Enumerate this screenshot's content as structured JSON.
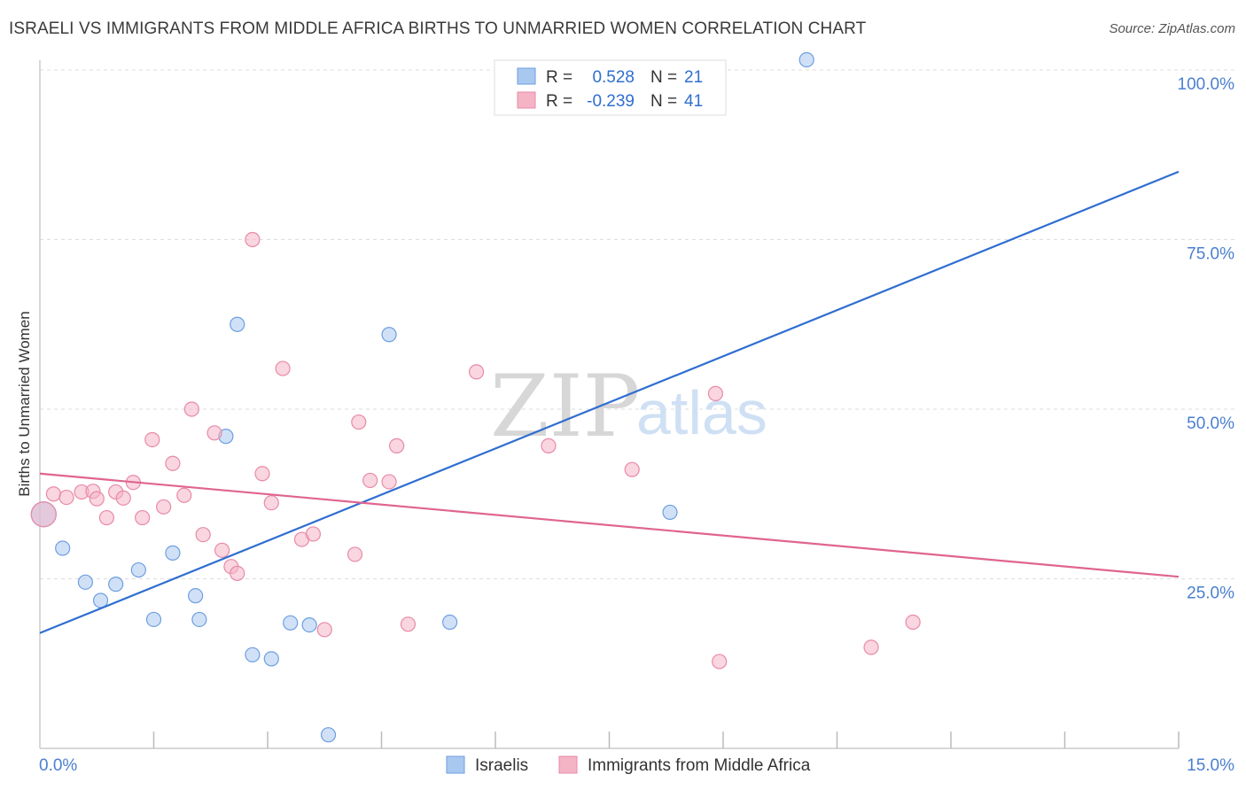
{
  "title": "ISRAELI VS IMMIGRANTS FROM MIDDLE AFRICA BIRTHS TO UNMARRIED WOMEN CORRELATION CHART",
  "source": "Source: ZipAtlas.com",
  "watermark": {
    "zip": "ZIP",
    "atlas": "atlas"
  },
  "chart_data": {
    "type": "scatter",
    "xlabel": "",
    "ylabel": "Births to Unmarried Women",
    "xlim": [
      0,
      15
    ],
    "ylim": [
      0,
      100
    ],
    "x_tick_labels": [
      "0.0%",
      "15.0%"
    ],
    "y_ticks": [
      25,
      50,
      75,
      100
    ],
    "y_tick_labels": [
      "25.0%",
      "50.0%",
      "75.0%",
      "100.0%"
    ],
    "grid": true,
    "legend_stats": [
      {
        "label_r": "R =",
        "r": "0.528",
        "label_n": "N =",
        "n": "21",
        "color": "#a9c8f0"
      },
      {
        "label_r": "R =",
        "r": "-0.239",
        "label_n": "N =",
        "n": "41",
        "color": "#f4b4c6"
      }
    ],
    "series": [
      {
        "name": "Israelis",
        "color": "#a9c8f0",
        "edge": "#6e9ee0",
        "line_color": "#2f6ed0",
        "trend": {
          "x": [
            0,
            15
          ],
          "y": [
            17,
            85
          ]
        },
        "points": [
          [
            0.05,
            34.5
          ],
          [
            0.3,
            29.5
          ],
          [
            0.6,
            24.5
          ],
          [
            0.8,
            21.8
          ],
          [
            1.0,
            24.2
          ],
          [
            1.3,
            26.3
          ],
          [
            1.5,
            19.0
          ],
          [
            1.75,
            28.8
          ],
          [
            2.05,
            22.5
          ],
          [
            2.1,
            19.0
          ],
          [
            2.45,
            46.0
          ],
          [
            2.6,
            62.5
          ],
          [
            2.8,
            13.8
          ],
          [
            3.05,
            13.2
          ],
          [
            3.3,
            18.5
          ],
          [
            3.55,
            18.2
          ],
          [
            3.8,
            2.0
          ],
          [
            4.6,
            61.0
          ],
          [
            5.4,
            18.6
          ],
          [
            8.3,
            34.8
          ],
          [
            10.1,
            101.5
          ]
        ]
      },
      {
        "name": "Immigrants from Middle Africa",
        "color": "#f4b4c6",
        "edge": "#e88aa8",
        "line_color": "#e0648f",
        "trend": {
          "x": [
            0,
            15
          ],
          "y": [
            40.5,
            25.3
          ]
        },
        "points": [
          [
            0.05,
            34.5
          ],
          [
            0.18,
            37.5
          ],
          [
            0.35,
            37.0
          ],
          [
            0.55,
            37.8
          ],
          [
            0.7,
            37.9
          ],
          [
            0.75,
            36.8
          ],
          [
            0.88,
            34.0
          ],
          [
            1.0,
            37.8
          ],
          [
            1.1,
            36.9
          ],
          [
            1.23,
            39.2
          ],
          [
            1.35,
            34.0
          ],
          [
            1.48,
            45.5
          ],
          [
            1.63,
            35.6
          ],
          [
            1.75,
            42.0
          ],
          [
            1.9,
            37.3
          ],
          [
            2.0,
            50.0
          ],
          [
            2.15,
            31.5
          ],
          [
            2.3,
            46.5
          ],
          [
            2.4,
            29.2
          ],
          [
            2.52,
            26.8
          ],
          [
            2.6,
            25.8
          ],
          [
            2.8,
            75.0
          ],
          [
            2.93,
            40.5
          ],
          [
            3.05,
            36.2
          ],
          [
            3.2,
            56.0
          ],
          [
            3.45,
            30.8
          ],
          [
            3.6,
            31.6
          ],
          [
            3.75,
            17.5
          ],
          [
            4.15,
            28.6
          ],
          [
            4.2,
            48.1
          ],
          [
            4.35,
            39.5
          ],
          [
            4.6,
            39.3
          ],
          [
            4.7,
            44.6
          ],
          [
            4.85,
            18.3
          ],
          [
            5.75,
            55.5
          ],
          [
            6.7,
            44.6
          ],
          [
            7.8,
            41.1
          ],
          [
            8.9,
            52.3
          ],
          [
            8.95,
            12.8
          ],
          [
            10.95,
            14.9
          ],
          [
            11.5,
            18.6
          ]
        ]
      }
    ]
  }
}
